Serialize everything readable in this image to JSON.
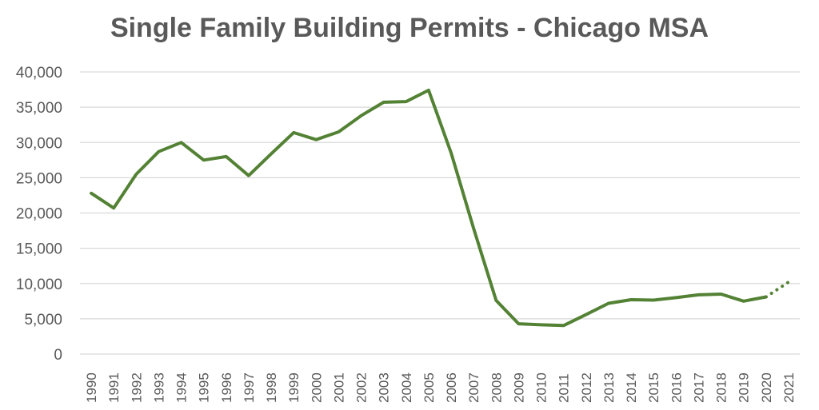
{
  "chart_data": {
    "type": "line",
    "title": "Single Family Building Permits - Chicago MSA",
    "xlabel": "",
    "ylabel": "",
    "ylim": [
      0,
      40000
    ],
    "yticks": [
      0,
      5000,
      10000,
      15000,
      20000,
      25000,
      30000,
      35000,
      40000
    ],
    "ytick_labels": [
      "0",
      "5,000",
      "10,000",
      "15,000",
      "20,000",
      "25,000",
      "30,000",
      "35,000",
      "40,000"
    ],
    "categories": [
      "1990",
      "1991",
      "1992",
      "1993",
      "1994",
      "1995",
      "1996",
      "1997",
      "1998",
      "1999",
      "2000",
      "2001",
      "2002",
      "2003",
      "2004",
      "2005",
      "2006",
      "2007",
      "2008",
      "2009",
      "2010",
      "2011",
      "2012",
      "2013",
      "2014",
      "2015",
      "2016",
      "2017",
      "2018",
      "2019",
      "2020",
      "2021"
    ],
    "grid": true,
    "legend": "none",
    "series": [
      {
        "values": [
          22800,
          20700,
          25500,
          28700,
          30000,
          27500,
          28000,
          25300,
          28400,
          31400,
          30400,
          31500,
          33800,
          35700,
          35800,
          37400,
          28500,
          17800,
          7600,
          4300,
          4150,
          4050,
          5600,
          7200,
          7700,
          7650,
          8000,
          8400,
          8500,
          7500,
          8100,
          null
        ],
        "color": "#548235",
        "style": "solid"
      },
      {
        "values": [
          null,
          null,
          null,
          null,
          null,
          null,
          null,
          null,
          null,
          null,
          null,
          null,
          null,
          null,
          null,
          null,
          null,
          null,
          null,
          null,
          null,
          null,
          null,
          null,
          null,
          null,
          null,
          null,
          null,
          null,
          8100,
          10200
        ],
        "color": "#548235",
        "style": "dotted"
      }
    ]
  }
}
